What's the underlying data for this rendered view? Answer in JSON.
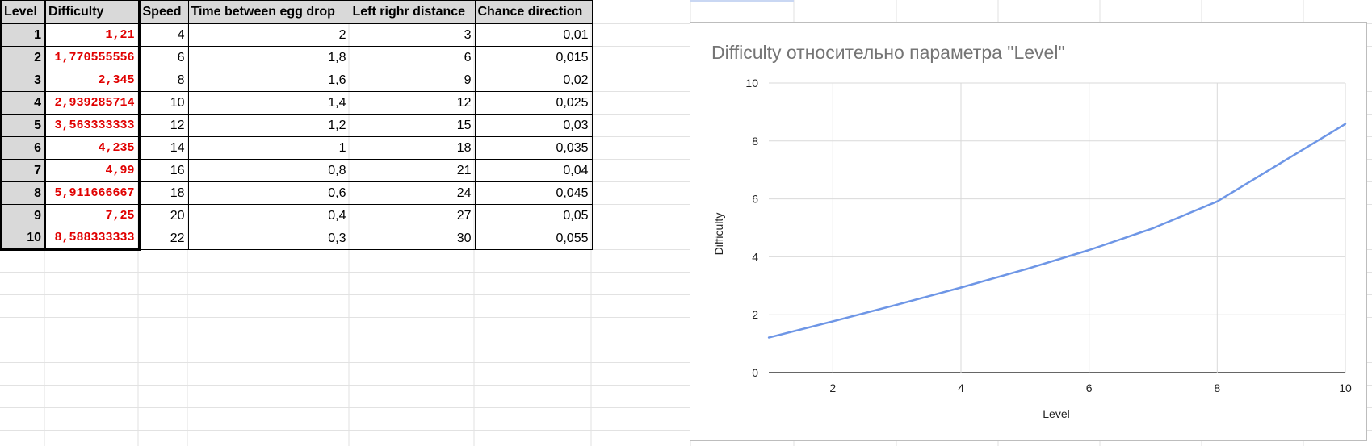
{
  "table": {
    "headers": [
      "Level",
      "Difficulty",
      "Speed",
      "Time between egg drop",
      "Left righr distance",
      "Chance direction"
    ],
    "rows": [
      [
        "1",
        "1,21",
        "4",
        "2",
        "3",
        "0,01"
      ],
      [
        "2",
        "1,770555556",
        "6",
        "1,8",
        "6",
        "0,015"
      ],
      [
        "3",
        "2,345",
        "8",
        "1,6",
        "9",
        "0,02"
      ],
      [
        "4",
        "2,939285714",
        "10",
        "1,4",
        "12",
        "0,025"
      ],
      [
        "5",
        "3,563333333",
        "12",
        "1,2",
        "15",
        "0,03"
      ],
      [
        "6",
        "4,235",
        "14",
        "1",
        "18",
        "0,035"
      ],
      [
        "7",
        "4,99",
        "16",
        "0,8",
        "21",
        "0,04"
      ],
      [
        "8",
        "5,911666667",
        "18",
        "0,6",
        "24",
        "0,045"
      ],
      [
        "9",
        "7,25",
        "20",
        "0,4",
        "27",
        "0,05"
      ],
      [
        "10",
        "8,588333333",
        "22",
        "0,3",
        "30",
        "0,055"
      ]
    ]
  },
  "colors": {
    "difficulty_text": "#e00000",
    "header_fill": "#d9d9d9",
    "line": "#6e96e6",
    "gridline": "#d9d9d9"
  },
  "chart_data": {
    "type": "line",
    "title": "Difficulty относительно параметра \"Level\"",
    "xlabel": "Level",
    "ylabel": "Difficulty",
    "x": [
      1,
      2,
      3,
      4,
      5,
      6,
      7,
      8,
      9,
      10
    ],
    "series": [
      {
        "values": [
          1.21,
          1.770555556,
          2.345,
          2.939285714,
          3.563333333,
          4.235,
          4.99,
          5.911666667,
          7.25,
          8.588333333
        ]
      }
    ],
    "xlim": [
      1,
      10
    ],
    "ylim": [
      0,
      10
    ],
    "x_ticks": [
      2,
      4,
      6,
      8,
      10
    ],
    "y_ticks": [
      0,
      2,
      4,
      6,
      8,
      10
    ],
    "grid": true,
    "legend": "none"
  }
}
